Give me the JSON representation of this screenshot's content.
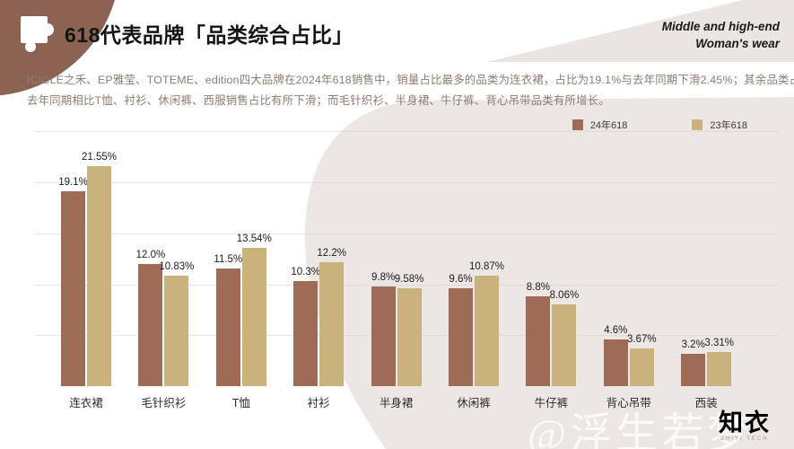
{
  "header": {
    "title": "618代表品牌「品类综合占比」",
    "tagline_line1": "Middle and high-end",
    "tagline_line2": "Woman's wear"
  },
  "description": {
    "line1": "ICICLE之禾、EP雅莹、TOTEME、edition四大品牌在2024年618销售中，销量占比最多的品类为连衣裙，占比为19.1%与去年同期下滑2.45%；其余品类占比较为平均，与",
    "line2": "去年同期相比T恤、衬衫、休闲裤、西服销售占比有所下滑；而毛针织衫、半身裙、牛仔裤、背心吊带品类有所增长。"
  },
  "chart_data": {
    "type": "bar",
    "title": "618代表品牌「品类综合占比」",
    "categories": [
      "连衣裙",
      "毛针织衫",
      "T恤",
      "衬衫",
      "半身裙",
      "休闲裤",
      "牛仔裤",
      "背心吊带",
      "西装"
    ],
    "series": [
      {
        "name": "24年618",
        "color": "#9e6c56",
        "values": [
          19.1,
          12.0,
          11.5,
          10.3,
          9.8,
          9.6,
          8.8,
          4.6,
          3.2
        ],
        "labels": [
          "19.1%",
          "12.0%",
          "11.5%",
          "10.3%",
          "9.8%",
          "9.6%",
          "8.8%",
          "4.6%",
          "3.2%"
        ]
      },
      {
        "name": "23年618",
        "color": "#c9b27c",
        "values": [
          21.55,
          10.83,
          13.54,
          12.2,
          9.58,
          10.87,
          8.06,
          3.67,
          3.31
        ],
        "labels": [
          "21.55%",
          "10.83%",
          "13.54%",
          "12.2%",
          "9.58%",
          "10.87%",
          "8.06%",
          "3.67%",
          "3.31%"
        ]
      }
    ],
    "unit": "%",
    "ylim": [
      0,
      25
    ],
    "gridlines_pct": [
      5,
      10,
      15,
      20,
      25
    ],
    "grid": true,
    "legend_position": "top-right",
    "value_labels": "above-bars"
  },
  "footer": {
    "watermark": "@浮生若梦",
    "logo_text": "知衣",
    "logo_subtext": "ZHIYI TECH"
  },
  "colors": {
    "brand_circle": "#8c6353",
    "wedge": "#e9e5e3",
    "blob": "#ece7e5",
    "background": "#ffffff"
  }
}
